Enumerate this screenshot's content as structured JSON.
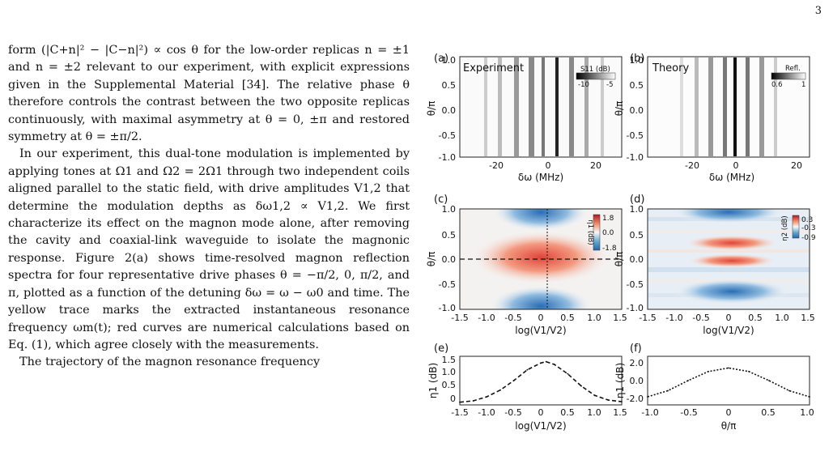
{
  "page_number": "3",
  "paragraphs": [
    "form (|C+n|² − |C−n|²) ∝ cos θ for the low-order replicas n = ±1 and n = ±2 relevant to our experiment, with explicit expressions given in the Supplemental Material [34]. The relative phase θ therefore controls the contrast between the two opposite replicas continuously, with maximal asymmetry at θ = 0, ±π and restored symmetry at θ = ±π/2.",
    "In our experiment, this dual-tone modulation is implemented by applying tones at Ω1 and Ω2 = 2Ω1 through two independent coils aligned parallel to the static field, with drive amplitudes V1,2 that determine the modulation depths as δω1,2 ∝ V1,2. We first characterize its effect on the magnon mode alone, after removing the cavity and coaxial-link waveguide to isolate the magnonic response. Figure 2(a) shows time-resolved magnon reflection spectra for four representative drive phases θ = −π/2, 0, π/2, and π, plotted as a function of the detuning δω = ω − ω0 and time. The yellow trace marks the extracted instantaneous resonance frequency ωm(t); red curves are numerical calculations based on Eq. (1), which agree closely with the measurements.",
    "The trajectory of the magnon resonance frequency"
  ],
  "panels": {
    "a": {
      "tag": "(a)",
      "title": "Experiment",
      "cb_label": "S11 (dB)",
      "cb_ticks": [
        "-10",
        "-5"
      ],
      "xlabel": "δω (MHz)",
      "ylabel": "θ/π",
      "xticks": [
        "-20",
        "0",
        "20"
      ],
      "yticks": [
        "1.0",
        "0.5",
        "0.0",
        "-0.5",
        "-1.0"
      ]
    },
    "b": {
      "tag": "(b)",
      "title": "Theory",
      "cb_label": "Refl.",
      "cb_ticks": [
        "0.6",
        "1"
      ],
      "xlabel": "δω (MHz)",
      "ylabel": "θ/π",
      "xticks": [
        "-20",
        "0",
        "20"
      ],
      "yticks": [
        "1.0",
        "0.5",
        "0.0",
        "-0.5",
        "-1.0"
      ]
    },
    "c": {
      "tag": "(c)",
      "cb_label": "η1 (dB)",
      "cb_ticks": [
        "1.8",
        "0.0",
        "-1.8"
      ],
      "xlabel": "log(V1/V2)",
      "ylabel": "θ/π",
      "xticks": [
        "-1.5",
        "-1.0",
        "-0.5",
        "0",
        "0.5",
        "1.0",
        "1.5"
      ],
      "yticks": [
        "1.0",
        "0.5",
        "0.0",
        "-0.5",
        "-1.0"
      ]
    },
    "d": {
      "tag": "(d)",
      "cb_label": "η2 (dB)",
      "cb_ticks": [
        "0.3",
        "-0.3",
        "-0.9"
      ],
      "xlabel": "log(V1/V2)",
      "ylabel": "θ/π",
      "xticks": [
        "-1.5",
        "-1.0",
        "-0.5",
        "0",
        "0.5",
        "1.0",
        "1.5"
      ],
      "yticks": [
        "1.0",
        "0.5",
        "0.0",
        "-0.5",
        "-1.0"
      ]
    },
    "e": {
      "tag": "(e)",
      "xlabel": "log(V1/V2)",
      "ylabel": "η1 (dB)",
      "xticks": [
        "-1.5",
        "-1.0",
        "-0.5",
        "0",
        "0.5",
        "1.0",
        "1.5"
      ],
      "yticks": [
        "1.5",
        "1.0",
        "0.5",
        "0"
      ]
    },
    "f": {
      "tag": "(f)",
      "xlabel": "θ/π",
      "ylabel": "η1 (dB)",
      "xticks": [
        "-1.0",
        "-0.5",
        "0",
        "0.5",
        "1.0"
      ],
      "yticks": [
        "2.0",
        "0.0",
        "-2.0"
      ]
    }
  },
  "chart_data": [
    {
      "panel": "e",
      "type": "line",
      "xlim": [
        -1.5,
        1.5
      ],
      "ylim": [
        -0.2,
        1.6
      ],
      "x": [
        -1.5,
        -1.25,
        -1.0,
        -0.75,
        -0.5,
        -0.25,
        0.0,
        0.1,
        0.25,
        0.5,
        0.75,
        1.0,
        1.25,
        1.5
      ],
      "y": [
        -0.1,
        -0.05,
        0.1,
        0.35,
        0.7,
        1.1,
        1.35,
        1.4,
        1.3,
        0.95,
        0.5,
        0.15,
        -0.02,
        -0.08
      ]
    },
    {
      "panel": "f",
      "type": "line",
      "xlim": [
        -1.0,
        1.0
      ],
      "ylim": [
        -2.4,
        2.4
      ],
      "x": [
        -1.0,
        -0.75,
        -0.5,
        -0.25,
        0.0,
        0.25,
        0.5,
        0.75,
        1.0
      ],
      "y": [
        -1.6,
        -1.0,
        0.0,
        0.9,
        1.25,
        0.9,
        0.0,
        -1.0,
        -1.6
      ]
    }
  ]
}
